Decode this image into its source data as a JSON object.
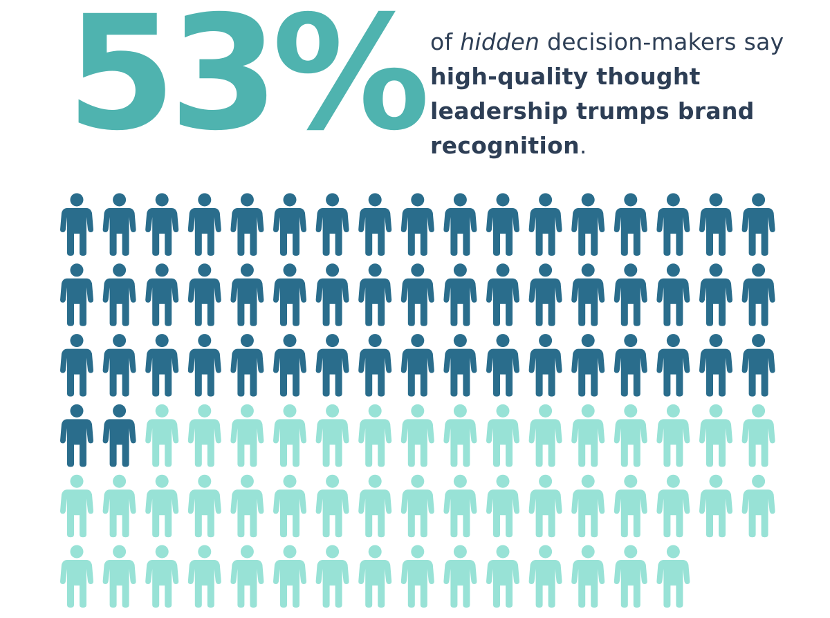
{
  "chart_data": {
    "type": "pictogram",
    "values": [
      53,
      47
    ],
    "value_labels": [
      "53%",
      null
    ],
    "colors": [
      "#2a6d8c",
      "#98e2d6"
    ],
    "headline_color": "#4fb3af",
    "subtitle_parts": [
      "of ",
      "hidden",
      " decision-makers say ",
      "high-quality thought leadership trumps brand recognition",
      "."
    ]
  }
}
